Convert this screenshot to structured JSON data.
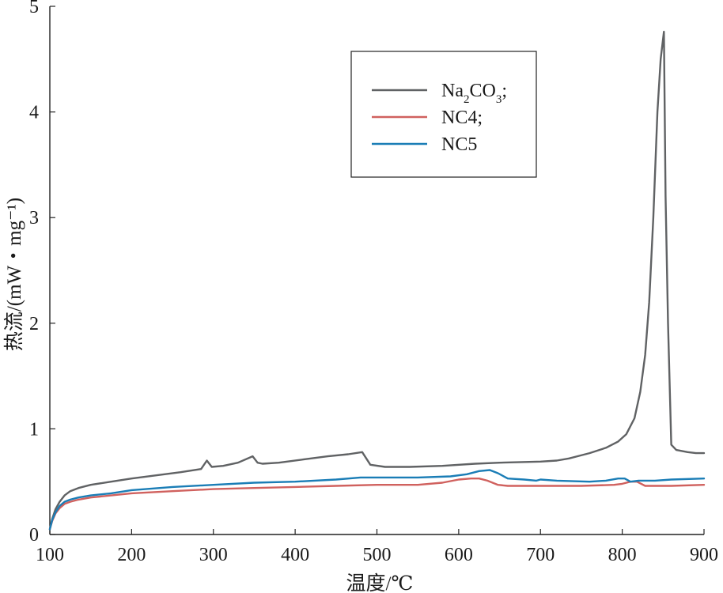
{
  "chart_data": {
    "type": "line",
    "xlabel": "温度/℃",
    "ylabel": "热流/(mW・mg⁻¹)",
    "xlim": [
      100,
      900
    ],
    "ylim": [
      0,
      5
    ],
    "xticks": [
      100,
      200,
      300,
      400,
      500,
      600,
      700,
      800,
      900
    ],
    "yticks": [
      0,
      1,
      2,
      3,
      4,
      5
    ],
    "grid": false,
    "legend_position": "top-right",
    "series": [
      {
        "name": "Na2CO3;",
        "color": "#606264",
        "x": [
          100,
          103,
          107,
          112,
          118,
          125,
          135,
          150,
          175,
          200,
          230,
          260,
          285,
          292,
          298,
          312,
          330,
          348,
          354,
          360,
          380,
          410,
          440,
          465,
          482,
          492,
          510,
          540,
          580,
          620,
          650,
          700,
          720,
          735,
          745,
          760,
          780,
          795,
          805,
          815,
          822,
          828,
          833,
          838,
          843,
          847,
          851,
          853,
          856,
          860,
          866,
          880,
          890,
          900
        ],
        "y": [
          0.05,
          0.15,
          0.24,
          0.31,
          0.37,
          0.41,
          0.44,
          0.47,
          0.5,
          0.53,
          0.56,
          0.59,
          0.62,
          0.7,
          0.64,
          0.65,
          0.68,
          0.74,
          0.68,
          0.67,
          0.68,
          0.71,
          0.74,
          0.76,
          0.78,
          0.66,
          0.64,
          0.64,
          0.65,
          0.67,
          0.68,
          0.69,
          0.7,
          0.72,
          0.74,
          0.77,
          0.82,
          0.88,
          0.95,
          1.1,
          1.35,
          1.7,
          2.2,
          3.0,
          4.0,
          4.5,
          4.76,
          3.2,
          2.0,
          0.85,
          0.8,
          0.78,
          0.77,
          0.77
        ]
      },
      {
        "name": "NC4;",
        "color": "#d0615e",
        "x": [
          100,
          103,
          107,
          112,
          118,
          125,
          135,
          150,
          175,
          200,
          250,
          300,
          350,
          400,
          450,
          500,
          550,
          580,
          600,
          615,
          625,
          635,
          648,
          660,
          700,
          750,
          790,
          800,
          810,
          818,
          828,
          840,
          860,
          900
        ],
        "y": [
          0.05,
          0.13,
          0.2,
          0.25,
          0.29,
          0.31,
          0.33,
          0.35,
          0.37,
          0.39,
          0.41,
          0.43,
          0.44,
          0.45,
          0.46,
          0.47,
          0.47,
          0.49,
          0.52,
          0.53,
          0.53,
          0.51,
          0.47,
          0.46,
          0.46,
          0.46,
          0.47,
          0.48,
          0.5,
          0.5,
          0.46,
          0.46,
          0.46,
          0.47
        ]
      },
      {
        "name": "NC5",
        "color": "#1a7db6",
        "x": [
          100,
          103,
          107,
          112,
          118,
          125,
          135,
          150,
          175,
          200,
          250,
          300,
          350,
          400,
          450,
          480,
          500,
          550,
          590,
          610,
          625,
          638,
          648,
          660,
          680,
          695,
          700,
          720,
          760,
          780,
          795,
          803,
          810,
          820,
          840,
          860,
          900
        ],
        "y": [
          0.05,
          0.14,
          0.21,
          0.27,
          0.31,
          0.33,
          0.35,
          0.37,
          0.39,
          0.42,
          0.45,
          0.47,
          0.49,
          0.5,
          0.52,
          0.54,
          0.54,
          0.54,
          0.55,
          0.57,
          0.6,
          0.61,
          0.58,
          0.53,
          0.52,
          0.51,
          0.52,
          0.51,
          0.5,
          0.51,
          0.53,
          0.53,
          0.5,
          0.51,
          0.51,
          0.52,
          0.53
        ]
      }
    ]
  }
}
